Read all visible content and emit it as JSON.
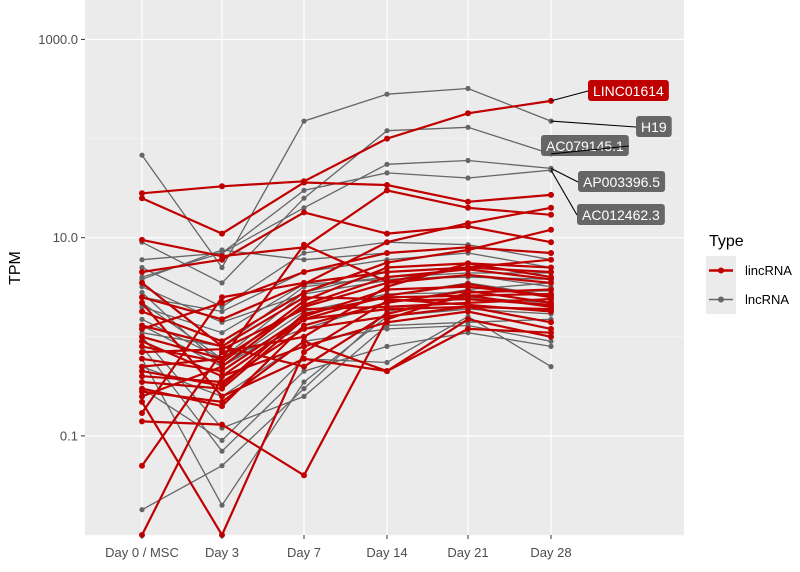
{
  "chart_data": {
    "type": "line",
    "title": "",
    "xlabel": "",
    "ylabel": "TPM",
    "y_scale": "log10",
    "ylim": [
      0.01,
      2500
    ],
    "y_ticks": [
      {
        "value": 0.1,
        "label": "0.1"
      },
      {
        "value": 10,
        "label": "10.0"
      },
      {
        "value": 1000,
        "label": "1000.0"
      }
    ],
    "categories": [
      "Day 0 / MSC",
      "Day 3",
      "Day 7",
      "Day 14",
      "Day 21",
      "Day 28"
    ],
    "grid": true,
    "background": "#ebebeb",
    "legend": {
      "title": "Type",
      "placement": "right",
      "entries": [
        {
          "label": "lincRNA",
          "color": "#c00000"
        },
        {
          "label": "lncRNA",
          "color": "#666666"
        }
      ]
    },
    "series": [
      {
        "name": "LINC01614",
        "type": "lincRNA",
        "values": [
          28,
          33,
          37,
          100,
          180,
          240
        ]
      },
      {
        "name": "H19",
        "type": "lncRNA",
        "values": [
          68,
          5,
          150,
          280,
          320,
          150
        ]
      },
      {
        "name": "AC079145.1",
        "type": "lncRNA",
        "values": [
          9,
          3.5,
          25,
          120,
          130,
          70
        ]
      },
      {
        "name": "AP003396.5",
        "type": "lncRNA",
        "values": [
          6,
          7,
          20,
          55,
          60,
          50
        ]
      },
      {
        "name": "AC012462.3",
        "type": "lncRNA",
        "values": [
          4,
          7,
          30,
          45,
          40,
          48
        ]
      },
      {
        "name": "",
        "type": "lincRNA",
        "values": [
          25,
          11,
          36,
          34,
          23,
          27
        ]
      },
      {
        "name": "",
        "type": "lincRNA",
        "values": [
          9.5,
          6.5,
          8,
          30,
          20,
          17
        ]
      },
      {
        "name": "",
        "type": "lincRNA",
        "values": [
          2.5,
          1.5,
          3.4,
          9,
          14,
          20
        ]
      },
      {
        "name": "",
        "type": "lincRNA",
        "values": [
          1.8,
          0.9,
          2.8,
          5.6,
          7.5,
          12
        ]
      },
      {
        "name": "",
        "type": "lincRNA",
        "values": [
          0.5,
          0.6,
          8.5,
          3.6,
          5,
          6
        ]
      },
      {
        "name": "",
        "type": "lincRNA",
        "values": [
          0.05,
          0.7,
          1,
          3.2,
          5.5,
          4
        ]
      },
      {
        "name": "",
        "type": "lincRNA",
        "values": [
          0.14,
          0.13,
          0.04,
          1.5,
          2.8,
          3
        ]
      },
      {
        "name": "",
        "type": "lincRNA",
        "values": [
          0.35,
          0.3,
          1.5,
          2.6,
          3.4,
          2.5
        ]
      },
      {
        "name": "",
        "type": "lincRNA",
        "values": [
          2.2,
          0.25,
          0.6,
          0.45,
          1.2,
          1.1
        ]
      },
      {
        "name": "",
        "type": "lincRNA",
        "values": [
          0.3,
          0.2,
          1.3,
          2.2,
          2.9,
          2.2
        ]
      },
      {
        "name": "",
        "type": "lincRNA",
        "values": [
          0.6,
          0.45,
          1.6,
          3,
          3.2,
          2.6
        ]
      },
      {
        "name": "",
        "type": "lincRNA",
        "values": [
          1,
          0.6,
          2,
          3.5,
          4.2,
          3.5
        ]
      },
      {
        "name": "",
        "type": "lincRNA",
        "values": [
          0.45,
          0.32,
          1.7,
          2.5,
          2.6,
          2
        ]
      },
      {
        "name": "",
        "type": "lincRNA",
        "values": [
          3.5,
          0.8,
          2.5,
          2.4,
          2.1,
          1.8
        ]
      },
      {
        "name": "",
        "type": "lincRNA",
        "values": [
          0.17,
          2.5,
          3.5,
          4.5,
          5,
          4.5
        ]
      },
      {
        "name": "",
        "type": "lincRNA",
        "values": [
          0.8,
          0.55,
          2.3,
          5,
          5.5,
          5
        ]
      },
      {
        "name": "",
        "type": "lincRNA",
        "values": [
          0.25,
          0.5,
          2.1,
          4,
          4.8,
          3.8
        ]
      },
      {
        "name": "",
        "type": "lincRNA",
        "values": [
          0.7,
          0.75,
          1.9,
          2,
          2.2,
          2.4
        ]
      },
      {
        "name": "",
        "type": "lincRNA",
        "values": [
          0.22,
          0.01,
          0.7,
          2.3,
          2.4,
          2.1
        ]
      },
      {
        "name": "",
        "type": "lincRNA",
        "values": [
          0.01,
          0.4,
          1.5,
          1.9,
          2,
          1.9
        ]
      },
      {
        "name": "",
        "type": "lincRNA",
        "values": [
          1.3,
          0.8,
          0.5,
          1.7,
          2.6,
          2.7
        ]
      },
      {
        "name": "",
        "type": "lincRNA",
        "values": [
          4.5,
          6,
          18,
          11,
          13,
          9
        ]
      },
      {
        "name": "",
        "type": "lincRNA",
        "values": [
          1.2,
          2.2,
          4.5,
          7,
          8,
          7
        ]
      },
      {
        "name": "",
        "type": "lincRNA",
        "values": [
          0.9,
          0.4,
          0.8,
          1.4,
          1.8,
          1.2
        ]
      },
      {
        "name": "",
        "type": "lincRNA",
        "values": [
          0.4,
          0.35,
          1.2,
          1.6,
          2,
          1.4
        ]
      },
      {
        "name": "",
        "type": "lincRNA",
        "values": [
          0.28,
          0.22,
          0.9,
          0.45,
          1.5,
          1.0
        ]
      },
      {
        "name": "",
        "type": "lncRNA",
        "values": [
          5,
          2,
          7,
          9,
          8.5,
          6
        ]
      },
      {
        "name": "",
        "type": "lncRNA",
        "values": [
          3.8,
          7.5,
          6,
          7,
          8,
          7
        ]
      },
      {
        "name": "",
        "type": "lncRNA",
        "values": [
          2.5,
          1.8,
          4.5,
          6,
          7,
          5
        ]
      },
      {
        "name": "",
        "type": "lncRNA",
        "values": [
          1.5,
          0.6,
          2.8,
          4.5,
          5,
          4.5
        ]
      },
      {
        "name": "",
        "type": "lncRNA",
        "values": [
          0.018,
          0.05,
          0.3,
          1.8,
          2.5,
          2.2
        ]
      },
      {
        "name": "",
        "type": "lncRNA",
        "values": [
          1,
          0.12,
          0.25,
          1.3,
          1.4,
          1.5
        ]
      },
      {
        "name": "",
        "type": "lncRNA",
        "values": [
          0.8,
          0.07,
          0.45,
          0.8,
          1.1,
          0.8
        ]
      },
      {
        "name": "",
        "type": "lncRNA",
        "values": [
          2.2,
          0.6,
          1.2,
          2.2,
          3,
          3.5
        ]
      },
      {
        "name": "",
        "type": "lncRNA",
        "values": [
          2.8,
          0.5,
          1.5,
          2.6,
          3.5,
          2.6
        ]
      },
      {
        "name": "",
        "type": "lncRNA",
        "values": [
          0.6,
          0.02,
          0.35,
          1.6,
          1.9,
          1.7
        ]
      },
      {
        "name": "",
        "type": "lncRNA",
        "values": [
          3.2,
          1.4,
          2.7,
          3.7,
          4.2,
          3.2
        ]
      },
      {
        "name": "",
        "type": "lncRNA",
        "values": [
          0.3,
          0.09,
          0.6,
          0.55,
          1.6,
          0.5
        ]
      },
      {
        "name": "",
        "type": "lncRNA",
        "values": [
          1.3,
          0.5,
          1.8,
          2.7,
          2.8,
          2.9
        ]
      },
      {
        "name": "",
        "type": "lncRNA",
        "values": [
          2,
          1.1,
          3.4,
          3.8,
          4,
          3.8
        ]
      },
      {
        "name": "",
        "type": "lncRNA",
        "values": [
          0.5,
          0.25,
          0.9,
          1.2,
          1.3,
          0.9
        ]
      },
      {
        "name": "",
        "type": "lncRNA",
        "values": [
          1.1,
          0.8,
          3.2,
          4,
          4.4,
          4.4
        ]
      }
    ],
    "annotations": [
      {
        "series": "LINC01614",
        "label": "LINC01614",
        "type": "lincRNA"
      },
      {
        "series": "H19",
        "label": "H19",
        "type": "lncRNA"
      },
      {
        "series": "AC079145.1",
        "label": "AC079145.1",
        "type": "lncRNA"
      },
      {
        "series": "AP003396.5",
        "label": "AP003396.5",
        "type": "lncRNA"
      },
      {
        "series": "AC012462.3",
        "label": "AC012462.3",
        "type": "lncRNA"
      }
    ]
  }
}
